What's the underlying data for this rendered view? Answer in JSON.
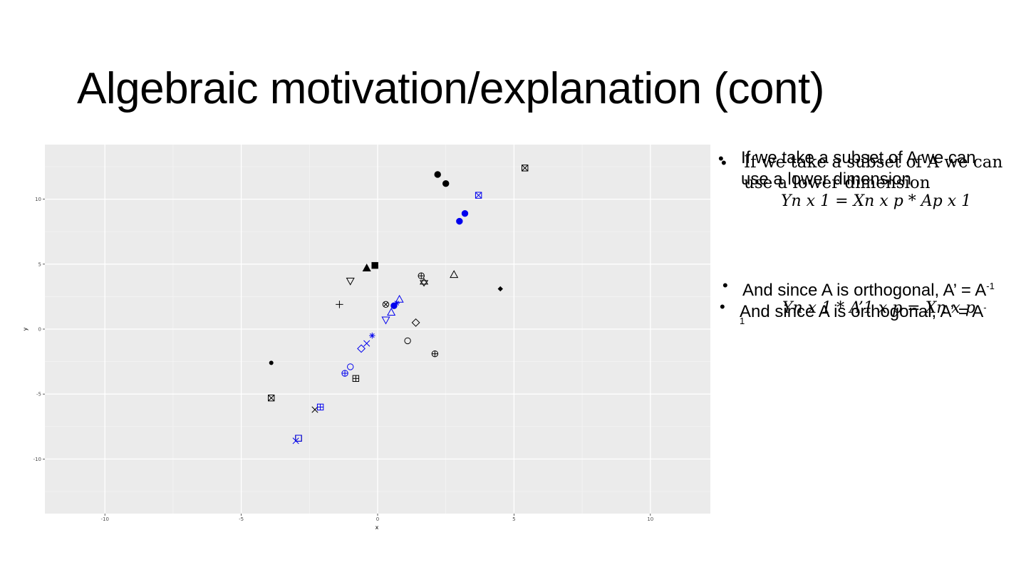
{
  "slide": {
    "title": "Algebraic motivation/explanation (cont)"
  },
  "bullets": {
    "b1_line1": "If we take a subset of A we can",
    "b1_line2": "use a lower dimension",
    "b1_equation": "Yn x 1 = Xn x p * Ap x 1",
    "b2_text": "And since A is orthogonal, A’ = A",
    "b2_sup": "-1",
    "b3_text": "And since A is orthogonal, A’ = A",
    "b3_sup": "-",
    "b3_tail": "1",
    "b3_equation": "Yn x 1 * A’1 x p = Xn x p"
  },
  "chart_data": {
    "type": "scatter",
    "xlabel": "x",
    "ylabel": "y",
    "xlim": [
      -12.2,
      12.2
    ],
    "ylim": [
      -14.2,
      14.2
    ],
    "x_ticks": [
      -10,
      -5,
      0,
      5,
      10
    ],
    "y_ticks": [
      -10,
      -5,
      0,
      5,
      10
    ],
    "grid": true,
    "background": "#ebebeb",
    "series": [
      {
        "color": "#000000",
        "points": [
          {
            "x": 5.4,
            "y": 12.4,
            "shape": "square-x"
          },
          {
            "x": 2.2,
            "y": 11.9,
            "shape": "circle-filled"
          },
          {
            "x": 2.5,
            "y": 11.2,
            "shape": "circle-filled"
          },
          {
            "x": -0.1,
            "y": 4.9,
            "shape": "square-filled"
          },
          {
            "x": -0.4,
            "y": 4.7,
            "shape": "triangle-filled"
          },
          {
            "x": -1.0,
            "y": 3.7,
            "shape": "triangle-down"
          },
          {
            "x": 1.6,
            "y": 4.1,
            "shape": "circle-plus"
          },
          {
            "x": 1.7,
            "y": 3.6,
            "shape": "star-david"
          },
          {
            "x": 2.8,
            "y": 4.2,
            "shape": "triangle"
          },
          {
            "x": 4.5,
            "y": 3.1,
            "shape": "diamond-filled"
          },
          {
            "x": -1.4,
            "y": 1.9,
            "shape": "plus"
          },
          {
            "x": 0.3,
            "y": 1.9,
            "shape": "circle-x"
          },
          {
            "x": 1.4,
            "y": 0.5,
            "shape": "diamond"
          },
          {
            "x": 1.1,
            "y": -0.9,
            "shape": "circle"
          },
          {
            "x": 2.1,
            "y": -1.9,
            "shape": "circle-plus"
          },
          {
            "x": -3.9,
            "y": -2.6,
            "shape": "dot"
          },
          {
            "x": -0.8,
            "y": -3.8,
            "shape": "square-plus"
          },
          {
            "x": -3.9,
            "y": -5.3,
            "shape": "square-x"
          },
          {
            "x": -2.3,
            "y": -6.2,
            "shape": "x"
          },
          {
            "x": -2.9,
            "y": -8.4,
            "shape": "square"
          }
        ]
      },
      {
        "color": "#0000ee",
        "points": [
          {
            "x": 3.7,
            "y": 10.3,
            "shape": "square-x"
          },
          {
            "x": 3.2,
            "y": 8.9,
            "shape": "circle-filled"
          },
          {
            "x": 3.0,
            "y": 8.3,
            "shape": "circle-filled"
          },
          {
            "x": 0.8,
            "y": 2.3,
            "shape": "triangle"
          },
          {
            "x": 0.7,
            "y": 2.0,
            "shape": "asterisk"
          },
          {
            "x": 0.6,
            "y": 1.8,
            "shape": "circle-filled"
          },
          {
            "x": 0.5,
            "y": 1.3,
            "shape": "triangle"
          },
          {
            "x": 0.3,
            "y": 0.7,
            "shape": "triangle-down"
          },
          {
            "x": -0.2,
            "y": -0.5,
            "shape": "asterisk"
          },
          {
            "x": -0.4,
            "y": -1.1,
            "shape": "x"
          },
          {
            "x": -0.6,
            "y": -1.5,
            "shape": "diamond"
          },
          {
            "x": -1.0,
            "y": -2.9,
            "shape": "circle"
          },
          {
            "x": -1.2,
            "y": -3.4,
            "shape": "circle-plus"
          },
          {
            "x": -2.1,
            "y": -6.0,
            "shape": "square-plus"
          },
          {
            "x": -3.0,
            "y": -8.6,
            "shape": "x"
          },
          {
            "x": -2.9,
            "y": -8.4,
            "shape": "square"
          }
        ]
      }
    ]
  }
}
